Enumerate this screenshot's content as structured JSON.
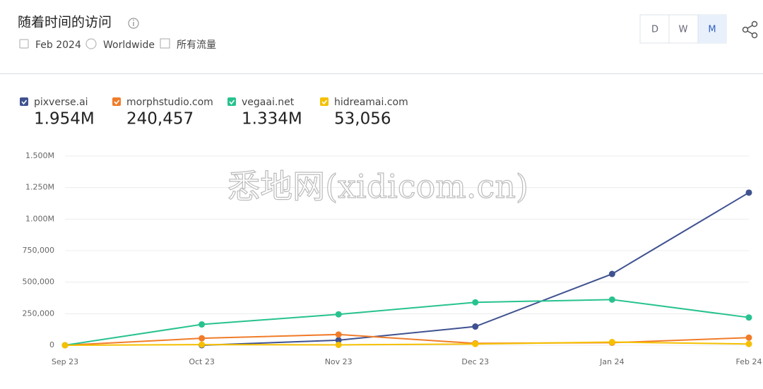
{
  "header": {
    "title": "随着时间的访问",
    "date": "Feb 2024",
    "region": "Worldwide",
    "traffic": "所有流量",
    "buttons": [
      "D",
      "W",
      "M"
    ]
  },
  "watermark": "悉地网(xidicom.cn)",
  "chart_data": {
    "type": "line",
    "categories": [
      "Sep 23",
      "Oct 23",
      "Nov 23",
      "Dec 23",
      "Jan 24",
      "Feb 24"
    ],
    "series": [
      {
        "name": "pixverse.ai",
        "total": "1.954M",
        "color": "#3f5290",
        "values": [
          null,
          0,
          40000,
          148000,
          565000,
          1210000
        ]
      },
      {
        "name": "morphstudio.com",
        "total": "240,457",
        "color": "#f07c2a",
        "values": [
          0,
          55000,
          85000,
          15000,
          20000,
          60000
        ]
      },
      {
        "name": "vegaai.net",
        "total": "1.334M",
        "color": "#27c28f",
        "values": [
          0,
          165000,
          245000,
          340000,
          362000,
          220000
        ]
      },
      {
        "name": "hidreamai.com",
        "total": "53,056",
        "color": "#f5c000",
        "values": [
          0,
          5000,
          3000,
          10000,
          25000,
          10000
        ]
      }
    ],
    "ylim": [
      0,
      1500000
    ],
    "yticks": [
      0,
      {
        "value": 250000,
        "label": "250,000"
      },
      {
        "value": 500000,
        "label": "500,000"
      },
      {
        "value": 750000,
        "label": "750,000"
      },
      {
        "value": 1000000,
        "label": "1.000M"
      },
      {
        "value": 1250000,
        "label": "1.250M"
      },
      {
        "value": 1500000,
        "label": "1.500M"
      }
    ],
    "grid": true
  }
}
